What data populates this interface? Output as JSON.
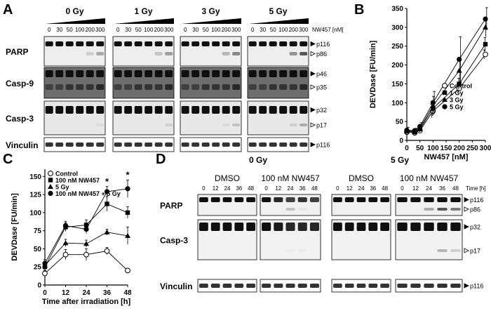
{
  "panels": {
    "A": {
      "letter": "A",
      "doses": [
        "0 Gy",
        "1 Gy",
        "3 Gy",
        "5 Gy"
      ],
      "conc_ticks": [
        "0",
        "30",
        "50",
        "100",
        "200",
        "300"
      ],
      "treatment_label": "NW457 [nM]",
      "blots": [
        {
          "name": "PARP",
          "bands": [
            "p116",
            "p86"
          ]
        },
        {
          "name": "Casp-9",
          "bands": [
            "p46",
            "p35"
          ]
        },
        {
          "name": "Casp-3",
          "bands": [
            "p32",
            "p17"
          ]
        },
        {
          "name": "Vinculin",
          "bands": [
            "p116"
          ]
        }
      ]
    },
    "B": {
      "letter": "B"
    },
    "C": {
      "letter": "C"
    },
    "D": {
      "letter": "D",
      "doses": [
        "0 Gy",
        "5 Gy"
      ],
      "treatments": [
        "DMSO",
        "100 nM NW457"
      ],
      "time_ticks": [
        "0",
        "12",
        "24",
        "36",
        "48"
      ],
      "time_label": "Time [h]",
      "blots": [
        {
          "name": "PARP",
          "bands": [
            "p116",
            "p86"
          ]
        },
        {
          "name": "Casp-3",
          "bands": [
            "p32",
            "p17"
          ]
        },
        {
          "name": "Vinculin",
          "bands": [
            "p116"
          ]
        }
      ]
    }
  },
  "chart_data": [
    {
      "panel": "B",
      "type": "line",
      "title": "",
      "xlabel": "NW457 [nM]",
      "ylabel": "DEVDase [FU/min]",
      "xlim": [
        0,
        300
      ],
      "ylim": [
        0,
        350
      ],
      "xticks": [
        0,
        50,
        100,
        150,
        200,
        250,
        300
      ],
      "yticks": [
        0,
        50,
        100,
        150,
        200,
        250,
        300,
        350
      ],
      "x": [
        0,
        30,
        50,
        100,
        200,
        300
      ],
      "legend_position": "bottom-right",
      "series": [
        {
          "name": "Control",
          "marker": "open-circle",
          "values": [
            22,
            20,
            26,
            78,
            138,
            228
          ],
          "errors": [
            6,
            5,
            7,
            18,
            12,
            12
          ]
        },
        {
          "name": "1 Gy",
          "marker": "square",
          "values": [
            24,
            22,
            30,
            85,
            150,
            255
          ],
          "errors": [
            6,
            5,
            8,
            20,
            15,
            18
          ]
        },
        {
          "name": "3 Gy",
          "marker": "triangle",
          "values": [
            25,
            24,
            33,
            92,
            185,
            300
          ],
          "errors": [
            7,
            6,
            9,
            25,
            30,
            25
          ]
        },
        {
          "name": "5 Gy",
          "marker": "filled-circle",
          "values": [
            27,
            26,
            37,
            100,
            215,
            322
          ],
          "errors": [
            8,
            6,
            10,
            30,
            60,
            30
          ]
        }
      ]
    },
    {
      "panel": "C",
      "type": "line",
      "title": "",
      "xlabel": "Time after irradiation [h]",
      "ylabel": "DEVDase [FU/min]",
      "xlim": [
        0,
        48
      ],
      "ylim": [
        0,
        160
      ],
      "xticks": [
        0,
        12,
        24,
        36,
        48
      ],
      "yticks": [
        0,
        25,
        50,
        75,
        100,
        125,
        150
      ],
      "x": [
        0,
        12,
        24,
        36,
        48
      ],
      "legend_position": "top-left",
      "annotations": [
        {
          "text": "*",
          "x": 36
        },
        {
          "text": "*",
          "x": 48
        }
      ],
      "series": [
        {
          "name": "Control",
          "marker": "open-circle",
          "values": [
            16,
            42,
            42,
            47,
            20
          ],
          "errors": [
            4,
            7,
            8,
            5,
            3
          ]
        },
        {
          "name": "100 nM NW457",
          "marker": "square",
          "values": [
            25,
            80,
            83,
            112,
            100
          ],
          "errors": [
            5,
            6,
            7,
            10,
            8
          ]
        },
        {
          "name": "5 Gy",
          "marker": "triangle",
          "values": [
            27,
            58,
            57,
            73,
            68
          ],
          "errors": [
            4,
            5,
            5,
            4,
            12
          ]
        },
        {
          "name": "100 nM NW457 + 5 Gy",
          "marker": "filled-circle",
          "values": [
            30,
            82,
            77,
            129,
            133
          ],
          "errors": [
            5,
            6,
            6,
            7,
            12
          ]
        }
      ]
    }
  ]
}
